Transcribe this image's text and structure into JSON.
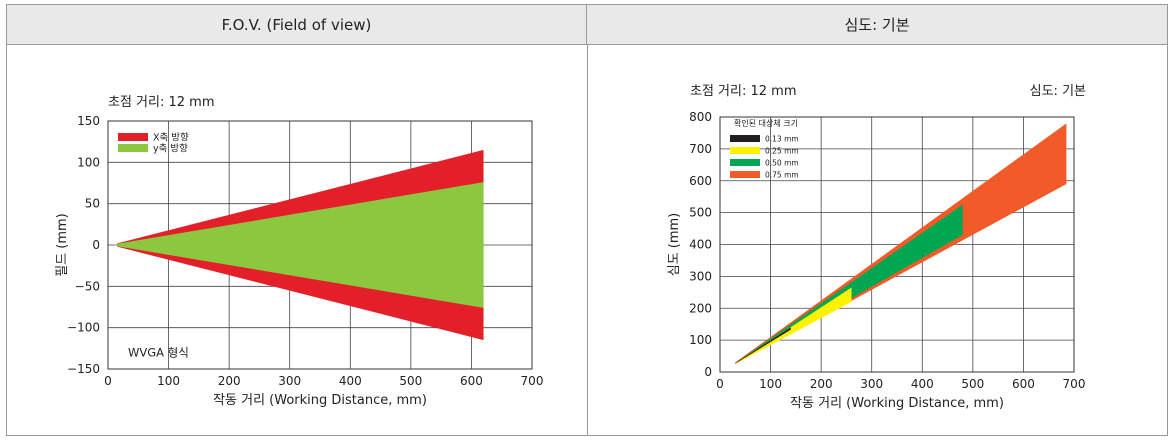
{
  "headers": {
    "left": "F.O.V. (Field of view)",
    "right": "심도: 기본"
  },
  "chart_data": [
    {
      "type": "area",
      "title": "초점 거리: 12 mm",
      "xlabel": "작동 거리 (Working Distance, mm)",
      "ylabel": "필드 (mm)",
      "xlim": [
        0,
        700
      ],
      "ylim": [
        -150,
        150
      ],
      "xticks": [
        0,
        100,
        200,
        300,
        400,
        500,
        600,
        700
      ],
      "yticks": [
        150,
        100,
        50,
        0,
        -50,
        -100,
        -150
      ],
      "ytick_labels": [
        "150",
        "100",
        "50",
        "0",
        "−50",
        "−100",
        "−150"
      ],
      "grid": true,
      "legend_position": "top-left",
      "annotation": "WVGA 형식",
      "series": [
        {
          "name": "X축 방향",
          "color": "#e3202a",
          "x": [
            15,
            620
          ],
          "upper": [
            2,
            115
          ],
          "lower": [
            -2,
            -115
          ]
        },
        {
          "name": "y축 방향",
          "color": "#8dc63f",
          "x": [
            15,
            620
          ],
          "upper": [
            1.5,
            76
          ],
          "lower": [
            -1.5,
            -76
          ]
        }
      ]
    },
    {
      "type": "area",
      "title": "초점 거리: 12 mm",
      "subtitle": "심도: 기본",
      "xlabel": "작동 거리 (Working Distance, mm)",
      "ylabel": "심도 (mm)",
      "xlim": [
        0,
        700
      ],
      "ylim": [
        0,
        800
      ],
      "xticks": [
        0,
        100,
        200,
        300,
        400,
        500,
        600,
        700
      ],
      "yticks": [
        800,
        700,
        600,
        500,
        400,
        300,
        200,
        100,
        0
      ],
      "grid": true,
      "legend_title": "확인된 대상체 크기",
      "legend_position": "top-left",
      "series": [
        {
          "name": "0.75 mm",
          "color": "#f15a29",
          "polygon": [
            [
              30,
              30
            ],
            [
              685,
              780
            ],
            [
              685,
              590
            ],
            [
              30,
              25
            ]
          ]
        },
        {
          "name": "0.50 mm",
          "color": "#00a651",
          "polygon": [
            [
              35,
              33
            ],
            [
              480,
              525
            ],
            [
              480,
              430
            ],
            [
              35,
              29
            ]
          ]
        },
        {
          "name": "0.25 mm",
          "color": "#fff200",
          "polygon": [
            [
              35,
              32
            ],
            [
              260,
              265
            ],
            [
              260,
              220
            ],
            [
              35,
              29
            ]
          ]
        },
        {
          "name": "0.13 mm",
          "color": "#231f20",
          "polygon": [
            [
              35,
              33
            ],
            [
              140,
              140
            ],
            [
              140,
              133
            ],
            [
              35,
              31
            ]
          ]
        }
      ]
    }
  ]
}
